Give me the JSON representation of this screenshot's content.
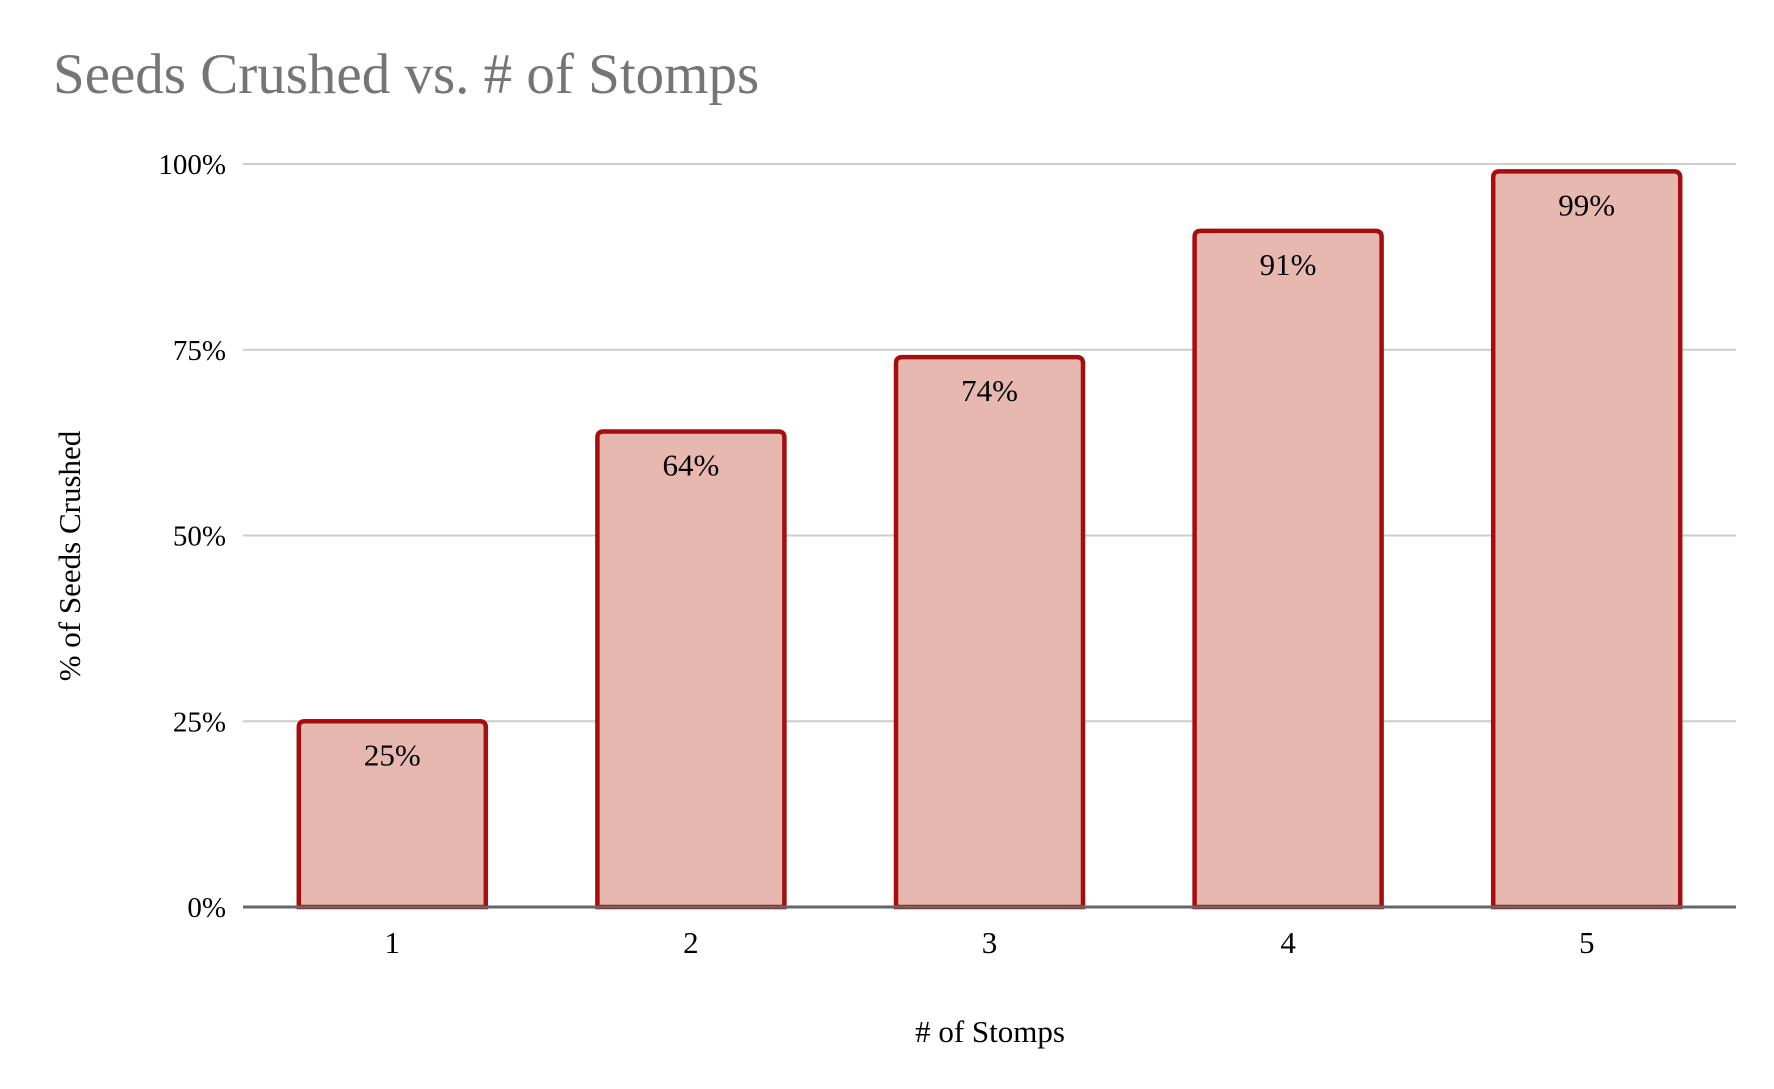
{
  "chart_data": {
    "type": "bar",
    "title": "Seeds Crushed vs. # of Stomps",
    "xlabel": "# of Stomps",
    "ylabel": "% of Seeds Crushed",
    "categories": [
      "1",
      "2",
      "3",
      "4",
      "5"
    ],
    "values": [
      25,
      64,
      74,
      91,
      99
    ],
    "data_labels": [
      "25%",
      "64%",
      "74%",
      "91%",
      "99%"
    ],
    "ylim": [
      0,
      100
    ],
    "yticks": [
      0,
      25,
      50,
      75,
      100
    ],
    "ytick_labels": [
      "0%",
      "25%",
      "50%",
      "75%",
      "100%"
    ],
    "grid": true,
    "legend": "none",
    "bar_fill_color": "#e6b8af",
    "bar_border_color": "#a50e0e",
    "title_color": "#757575",
    "gridline_color": "#cccccc",
    "axis_line_color": "#666666"
  }
}
